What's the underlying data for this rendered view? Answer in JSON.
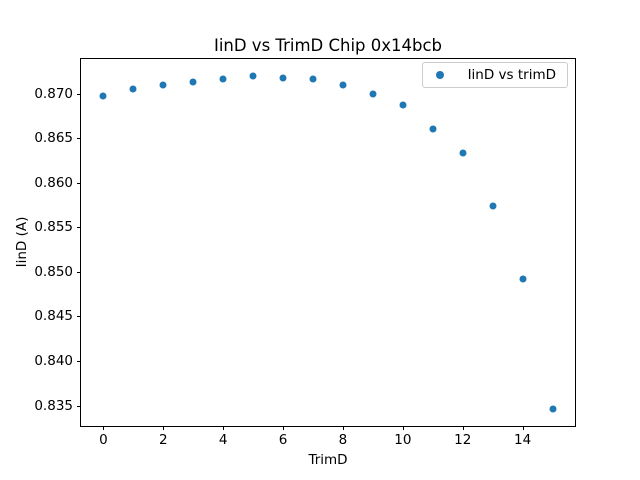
{
  "chart_data": {
    "type": "scatter",
    "title": "IinD vs TrimD Chip 0x14bcb",
    "xlabel": "TrimD",
    "ylabel": "IinD (A)",
    "x": [
      0,
      1,
      2,
      3,
      4,
      5,
      6,
      7,
      8,
      9,
      10,
      11,
      12,
      13,
      14,
      15
    ],
    "y": [
      0.8697,
      0.8705,
      0.871,
      0.8713,
      0.8716,
      0.872,
      0.8718,
      0.8716,
      0.871,
      0.87,
      0.8687,
      0.866,
      0.8633,
      0.8574,
      0.8492,
      0.8346
    ],
    "marker_color": "#1f77b4",
    "xticks": [
      0,
      2,
      4,
      6,
      8,
      10,
      12,
      14
    ],
    "yticks": [
      0.835,
      0.84,
      0.845,
      0.85,
      0.855,
      0.86,
      0.865,
      0.87
    ],
    "ytick_decimals": 3,
    "xlim": [
      -0.75,
      15.75
    ],
    "ylim": [
      0.8327,
      0.8739
    ],
    "grid": false,
    "legend": {
      "position": "upper right",
      "entries": [
        {
          "label": "IinD vs trimD",
          "marker_color": "#1f77b4"
        }
      ]
    }
  }
}
